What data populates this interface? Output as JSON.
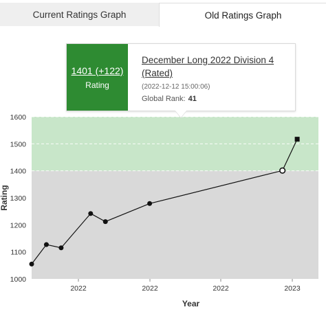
{
  "tabs": [
    {
      "label": "Current Ratings Graph",
      "active": false
    },
    {
      "label": "Old Ratings Graph",
      "active": true
    }
  ],
  "tooltip": {
    "rating": "1401 (+122)",
    "rating_label": "Rating",
    "contest": "December Long 2022 Division 4 (Rated)",
    "timestamp": "(2022-12-12 15:00:06)",
    "rank_label": "Global Rank:",
    "rank_value": "41",
    "badge_color": "#2e8b32"
  },
  "chart_data": {
    "type": "line",
    "title": "",
    "xlabel": "Year",
    "ylabel": "Rating",
    "ylim": [
      1000,
      1600
    ],
    "yticks": [
      1000,
      1100,
      1200,
      1300,
      1400,
      1500,
      1600
    ],
    "xticks": [
      "2022",
      "2022",
      "2022",
      "2023"
    ],
    "bands": [
      {
        "from": 1000,
        "to": 1400,
        "color": "#d9d9d9"
      },
      {
        "from": 1400,
        "to": 1600,
        "color": "#c8e6c9"
      }
    ],
    "series": [
      {
        "points": [
          {
            "x": "2021-07",
            "y": 1055
          },
          {
            "x": "2021-08",
            "y": 1127
          },
          {
            "x": "2021-09",
            "y": 1115
          },
          {
            "x": "2021-11",
            "y": 1242
          },
          {
            "x": "2021-12",
            "y": 1212
          },
          {
            "x": "2022-03",
            "y": 1279
          },
          {
            "x": "2022-12",
            "y": 1401,
            "highlighted": true
          },
          {
            "x": "2023-01",
            "y": 1517,
            "current": true
          }
        ]
      }
    ],
    "grid": false,
    "legend": "none"
  }
}
